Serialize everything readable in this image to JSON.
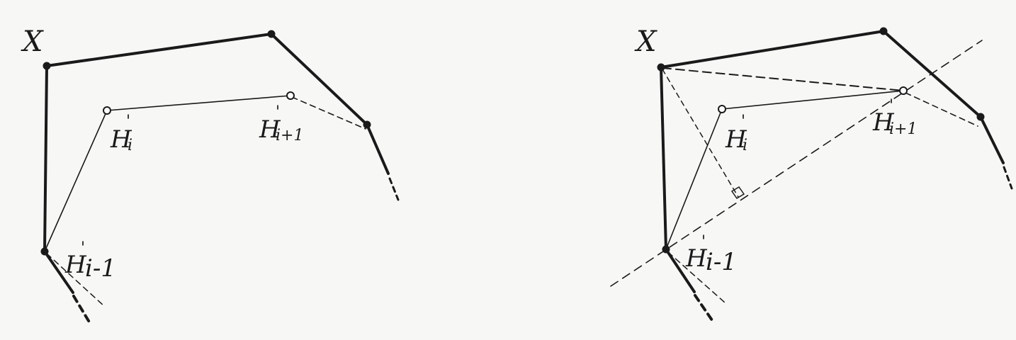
{
  "figures": [
    {
      "id": "left",
      "labels": {
        "x": "X",
        "h_i": "H",
        "h_i_sup": "'",
        "h_i_sub": "i",
        "h_i1": "H",
        "h_i1_sup": "'",
        "h_i1_sub": "i+1",
        "h_im1": "H",
        "h_im1_sup": "'",
        "h_im1_sub": "i-1"
      }
    },
    {
      "id": "right",
      "labels": {
        "x": "X",
        "h_i": "H",
        "h_i_sup": "'",
        "h_i_sub": "i",
        "h_i1": "H",
        "h_i1_sup": "'",
        "h_i1_sub": "i+1",
        "h_im1": "H",
        "h_im1_sup": "'",
        "h_im1_sub": "i-1"
      }
    }
  ],
  "colors": {
    "ink": "#1a1a1a",
    "paper": "#f7f7f5"
  }
}
